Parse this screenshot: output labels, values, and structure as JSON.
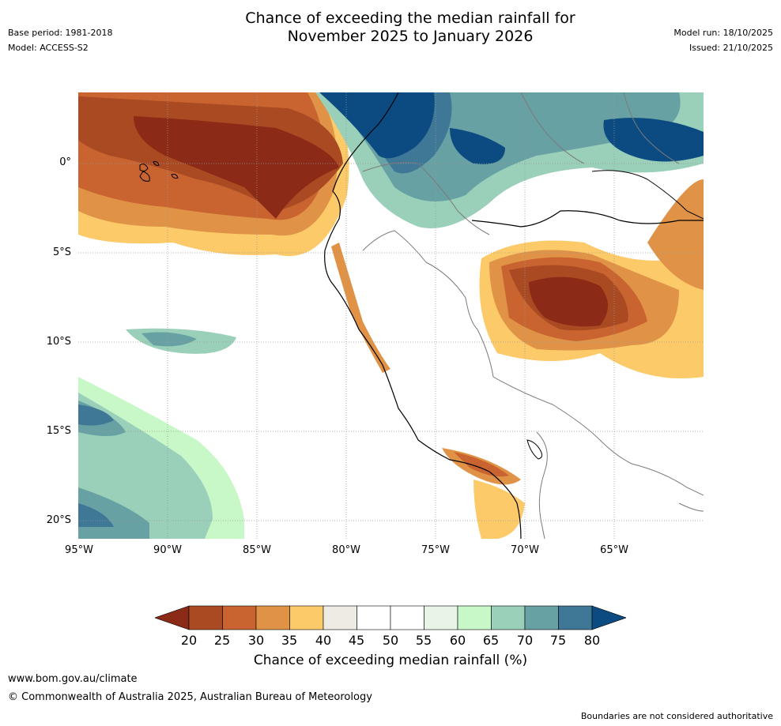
{
  "title": {
    "line1": "Chance of exceeding the median rainfall for",
    "line2": "November 2025 to January 2026"
  },
  "meta": {
    "base_period": "Base period: 1981-2018",
    "model": "Model: ACCESS-S2",
    "model_run": "Model run: 18/10/2025",
    "issued": "Issued: 21/10/2025"
  },
  "axes": {
    "latitude_ticks": [
      "0°",
      "5°S",
      "10°S",
      "15°S",
      "20°S"
    ],
    "longitude_ticks": [
      "95°W",
      "90°W",
      "85°W",
      "80°W",
      "75°W",
      "70°W",
      "65°W"
    ]
  },
  "colorbar": {
    "title": "Chance of exceeding median rainfall (%)",
    "labels": [
      "20",
      "25",
      "30",
      "35",
      "40",
      "45",
      "50",
      "55",
      "60",
      "65",
      "70",
      "75",
      "80"
    ],
    "colors": [
      "#8b2a16",
      "#a94a23",
      "#c96431",
      "#e09346",
      "#fdca6a",
      "#eeebe4",
      "#ffffff",
      "#ffffff",
      "#e7f4e6",
      "#c8f7c8",
      "#9acfb9",
      "#68a1a4",
      "#3f7797",
      "#0c4b82"
    ]
  },
  "footer": {
    "url": "www.bom.gov.au/climate",
    "copyright": "© Commonwealth of Australia 2025, Australian Bureau of Meteorology",
    "note": "Boundaries are not considered authoritative"
  }
}
